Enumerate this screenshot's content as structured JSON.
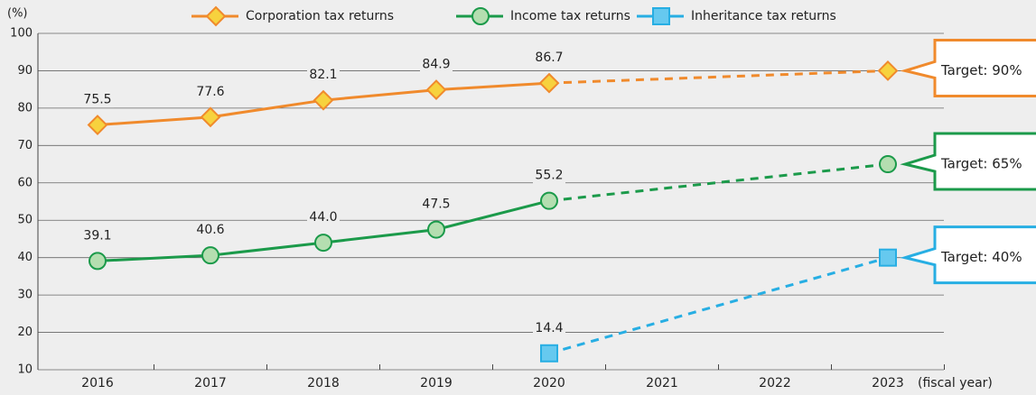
{
  "chart_data": {
    "type": "line",
    "y_label": "(%)",
    "x_label": "(fiscal year)",
    "categories": [
      "2016",
      "2017",
      "2018",
      "2019",
      "2020",
      "2021",
      "2022",
      "2023"
    ],
    "ylim": [
      10,
      100
    ],
    "yticks": [
      10,
      20,
      30,
      40,
      50,
      60,
      70,
      80,
      90,
      100
    ],
    "grid": true,
    "legend": "top",
    "dashed_from": "2020",
    "series": [
      {
        "name": "Corporation tax returns",
        "color": "#f08a2c",
        "marker_fill": "#f7d23e",
        "marker": "diamond",
        "values": [
          75.5,
          77.6,
          82.1,
          84.9,
          86.7,
          null,
          null,
          90
        ],
        "value_labels": [
          "75.5",
          "77.6",
          "82.1",
          "84.9",
          "86.7",
          null,
          null,
          null
        ],
        "target_label": "Target: 90%"
      },
      {
        "name": "Income tax returns",
        "color": "#1b9a4a",
        "marker_fill": "#b4deb0",
        "marker": "circle",
        "values": [
          39.1,
          40.6,
          44.0,
          47.5,
          55.2,
          null,
          null,
          65
        ],
        "value_labels": [
          "39.1",
          "40.6",
          "44.0",
          "47.5",
          "55.2",
          null,
          null,
          null
        ],
        "target_label": "Target: 65%"
      },
      {
        "name": "Inheritance tax returns",
        "color": "#27aee3",
        "marker_fill": "#66c9ef",
        "marker": "square",
        "values": [
          null,
          null,
          null,
          null,
          14.4,
          null,
          null,
          40
        ],
        "value_labels": [
          null,
          null,
          null,
          null,
          "14.4",
          null,
          null,
          null
        ],
        "target_label": "Target: 40%"
      }
    ]
  }
}
